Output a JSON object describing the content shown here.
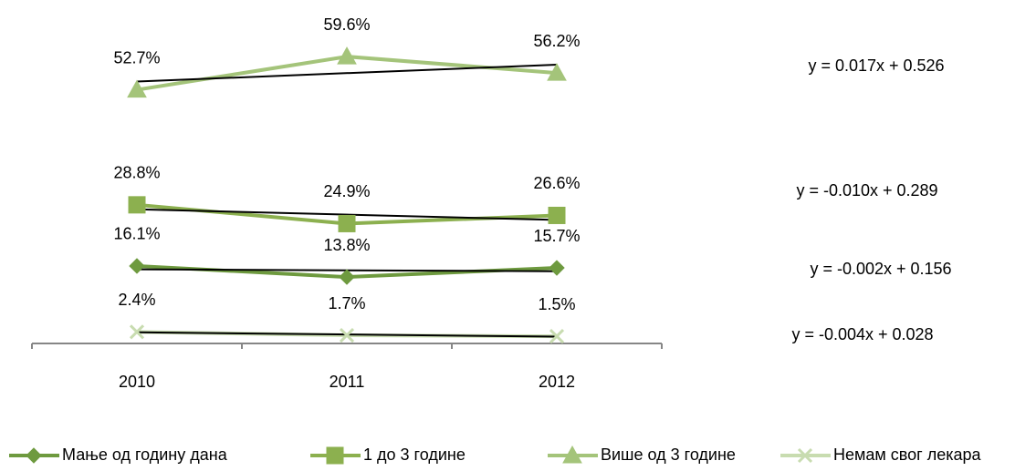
{
  "chart_data": {
    "type": "line",
    "categories": [
      "2010",
      "2011",
      "2012"
    ],
    "ylim": [
      0,
      60
    ],
    "series": [
      {
        "name": "Мање од годину дана",
        "color": "#6e9a3f",
        "marker": "diamond",
        "values": [
          16.1,
          13.8,
          15.7
        ],
        "value_labels": [
          "16.1%",
          "13.8%",
          "15.7%"
        ],
        "trendline": "y = -0.002x + 0.156"
      },
      {
        "name": "1 до 3 године",
        "color": "#8cb04f",
        "marker": "square",
        "values": [
          28.8,
          24.9,
          26.6
        ],
        "value_labels": [
          "28.8%",
          "24.9%",
          "26.6%"
        ],
        "trendline": "y = -0.010x + 0.289"
      },
      {
        "name": "Више од 3 године",
        "color": "#a4c47a",
        "marker": "triangle",
        "values": [
          52.7,
          59.6,
          56.2
        ],
        "value_labels": [
          "52.7%",
          "59.6%",
          "56.2%"
        ],
        "trendline": "y = 0.017x + 0.526"
      },
      {
        "name": "Немам свог лекара",
        "color": "#c8dcb0",
        "marker": "x",
        "values": [
          2.4,
          1.7,
          1.5
        ],
        "value_labels": [
          "2.4%",
          "1.7%",
          "1.5%"
        ],
        "trendline": "y = -0.004x + 0.028"
      }
    ],
    "legend": "bottom"
  }
}
